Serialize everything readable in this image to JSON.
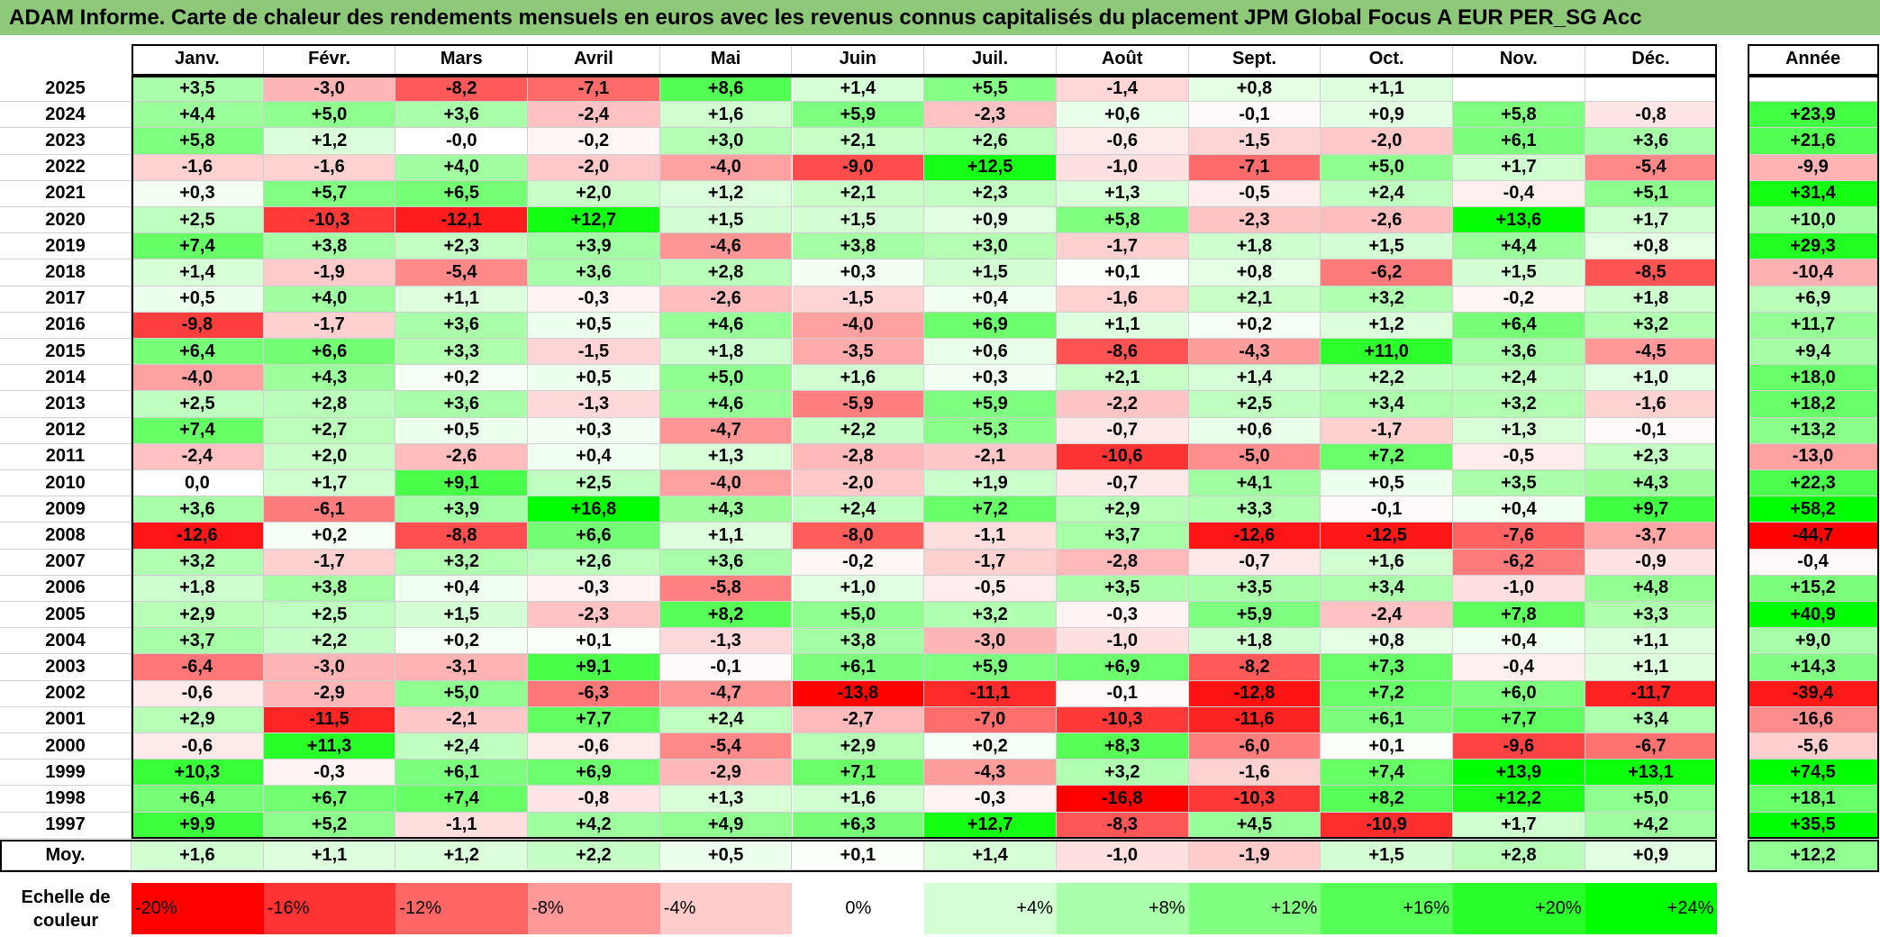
{
  "title": "ADAM Informe. Carte de chaleur des rendements mensuels en euros avec les revenus connus capitalisés du placement JPM Global Focus A EUR PER_SG Acc",
  "chart_data": {
    "type": "heatmap",
    "title": "ADAM Informe. Carte de chaleur des rendements mensuels en euros avec les revenus connus capitalisés du placement JPM Global Focus A EUR PER_SG Acc",
    "columns": [
      "Janv.",
      "Févr.",
      "Mars",
      "Avril",
      "Mai",
      "Juin",
      "Juil.",
      "Août",
      "Sept.",
      "Oct.",
      "Nov.",
      "Déc."
    ],
    "year_column": "Année",
    "rows": [
      {
        "year": "2025",
        "values": [
          "+3,5",
          "-3,0",
          "-8,2",
          "-7,1",
          "+8,6",
          "+1,4",
          "+5,5",
          "-1,4",
          "+0,8",
          "+1,1",
          "",
          ""
        ],
        "annual": ""
      },
      {
        "year": "2024",
        "values": [
          "+4,4",
          "+5,0",
          "+3,6",
          "-2,4",
          "+1,6",
          "+5,9",
          "-2,3",
          "+0,6",
          "-0,1",
          "+0,9",
          "+5,8",
          "-0,8"
        ],
        "annual": "+23,9"
      },
      {
        "year": "2023",
        "values": [
          "+5,8",
          "+1,2",
          "-0,0",
          "-0,2",
          "+3,0",
          "+2,1",
          "+2,6",
          "-0,6",
          "-1,5",
          "-2,0",
          "+6,1",
          "+3,6"
        ],
        "annual": "+21,6"
      },
      {
        "year": "2022",
        "values": [
          "-1,6",
          "-1,6",
          "+4,0",
          "-2,0",
          "-4,0",
          "-9,0",
          "+12,5",
          "-1,0",
          "-7,1",
          "+5,0",
          "+1,7",
          "-5,4"
        ],
        "annual": "-9,9"
      },
      {
        "year": "2021",
        "values": [
          "+0,3",
          "+5,7",
          "+6,5",
          "+2,0",
          "+1,2",
          "+2,1",
          "+2,3",
          "+1,3",
          "-0,5",
          "+2,4",
          "-0,4",
          "+5,1"
        ],
        "annual": "+31,4"
      },
      {
        "year": "2020",
        "values": [
          "+2,5",
          "-10,3",
          "-12,1",
          "+12,7",
          "+1,5",
          "+1,5",
          "+0,9",
          "+5,8",
          "-2,3",
          "-2,6",
          "+13,6",
          "+1,7"
        ],
        "annual": "+10,0"
      },
      {
        "year": "2019",
        "values": [
          "+7,4",
          "+3,8",
          "+2,3",
          "+3,9",
          "-4,6",
          "+3,8",
          "+3,0",
          "-1,7",
          "+1,8",
          "+1,5",
          "+4,4",
          "+0,8"
        ],
        "annual": "+29,3"
      },
      {
        "year": "2018",
        "values": [
          "+1,4",
          "-1,9",
          "-5,4",
          "+3,6",
          "+2,8",
          "+0,3",
          "+1,5",
          "+0,1",
          "+0,8",
          "-6,2",
          "+1,5",
          "-8,5"
        ],
        "annual": "-10,4"
      },
      {
        "year": "2017",
        "values": [
          "+0,5",
          "+4,0",
          "+1,1",
          "-0,3",
          "-2,6",
          "-1,5",
          "+0,4",
          "-1,6",
          "+2,1",
          "+3,2",
          "-0,2",
          "+1,8"
        ],
        "annual": "+6,9"
      },
      {
        "year": "2016",
        "values": [
          "-9,8",
          "-1,7",
          "+3,6",
          "+0,5",
          "+4,6",
          "-4,0",
          "+6,9",
          "+1,1",
          "+0,2",
          "+1,2",
          "+6,4",
          "+3,2"
        ],
        "annual": "+11,7"
      },
      {
        "year": "2015",
        "values": [
          "+6,4",
          "+6,6",
          "+3,3",
          "-1,5",
          "+1,8",
          "-3,5",
          "+0,6",
          "-8,6",
          "-4,3",
          "+11,0",
          "+3,6",
          "-4,5"
        ],
        "annual": "+9,4"
      },
      {
        "year": "2014",
        "values": [
          "-4,0",
          "+4,3",
          "+0,2",
          "+0,5",
          "+5,0",
          "+1,6",
          "+0,3",
          "+2,1",
          "+1,4",
          "+2,2",
          "+2,4",
          "+1,0"
        ],
        "annual": "+18,0"
      },
      {
        "year": "2013",
        "values": [
          "+2,5",
          "+2,8",
          "+3,6",
          "-1,3",
          "+4,6",
          "-5,9",
          "+5,9",
          "-2,2",
          "+2,5",
          "+3,4",
          "+3,2",
          "-1,6"
        ],
        "annual": "+18,2"
      },
      {
        "year": "2012",
        "values": [
          "+7,4",
          "+2,7",
          "+0,5",
          "+0,3",
          "-4,7",
          "+2,2",
          "+5,3",
          "-0,7",
          "+0,6",
          "-1,7",
          "+1,3",
          "-0,1"
        ],
        "annual": "+13,2"
      },
      {
        "year": "2011",
        "values": [
          "-2,4",
          "+2,0",
          "-2,6",
          "+0,4",
          "+1,3",
          "-2,8",
          "-2,1",
          "-10,6",
          "-5,0",
          "+7,2",
          "-0,5",
          "+2,3"
        ],
        "annual": "-13,0"
      },
      {
        "year": "2010",
        "values": [
          "0,0",
          "+1,7",
          "+9,1",
          "+2,5",
          "-4,0",
          "-2,0",
          "+1,9",
          "-0,7",
          "+4,1",
          "+0,5",
          "+3,5",
          "+4,3"
        ],
        "annual": "+22,3"
      },
      {
        "year": "2009",
        "values": [
          "+3,6",
          "-6,1",
          "+3,9",
          "+16,8",
          "+4,3",
          "+2,4",
          "+7,2",
          "+2,9",
          "+3,3",
          "-0,1",
          "+0,4",
          "+9,7"
        ],
        "annual": "+58,2"
      },
      {
        "year": "2008",
        "values": [
          "-12,6",
          "+0,2",
          "-8,8",
          "+6,6",
          "+1,1",
          "-8,0",
          "-1,1",
          "+3,7",
          "-12,6",
          "-12,5",
          "-7,6",
          "-3,7"
        ],
        "annual": "-44,7"
      },
      {
        "year": "2007",
        "values": [
          "+3,2",
          "-1,7",
          "+3,2",
          "+2,6",
          "+3,6",
          "-0,2",
          "-1,7",
          "-2,8",
          "-0,7",
          "+1,6",
          "-6,2",
          "-0,9"
        ],
        "annual": "-0,4"
      },
      {
        "year": "2006",
        "values": [
          "+1,8",
          "+3,8",
          "+0,4",
          "-0,3",
          "-5,8",
          "+1,0",
          "-0,5",
          "+3,5",
          "+3,5",
          "+3,4",
          "-1,0",
          "+4,8"
        ],
        "annual": "+15,2"
      },
      {
        "year": "2005",
        "values": [
          "+2,9",
          "+2,5",
          "+1,5",
          "-2,3",
          "+8,2",
          "+5,0",
          "+3,2",
          "-0,3",
          "+5,9",
          "-2,4",
          "+7,8",
          "+3,3"
        ],
        "annual": "+40,9"
      },
      {
        "year": "2004",
        "values": [
          "+3,7",
          "+2,2",
          "+0,2",
          "+0,1",
          "-1,3",
          "+3,8",
          "-3,0",
          "-1,0",
          "+1,8",
          "+0,8",
          "+0,4",
          "+1,1"
        ],
        "annual": "+9,0"
      },
      {
        "year": "2003",
        "values": [
          "-6,4",
          "-3,0",
          "-3,1",
          "+9,1",
          "-0,1",
          "+6,1",
          "+5,9",
          "+6,9",
          "-8,2",
          "+7,3",
          "-0,4",
          "+1,1"
        ],
        "annual": "+14,3"
      },
      {
        "year": "2002",
        "values": [
          "-0,6",
          "-2,9",
          "+5,0",
          "-6,3",
          "-4,7",
          "-13,8",
          "-11,1",
          "-0,1",
          "-12,8",
          "+7,2",
          "+6,0",
          "-11,7"
        ],
        "annual": "-39,4"
      },
      {
        "year": "2001",
        "values": [
          "+2,9",
          "-11,5",
          "-2,1",
          "+7,7",
          "+2,4",
          "-2,7",
          "-7,0",
          "-10,3",
          "-11,6",
          "+6,1",
          "+7,7",
          "+3,4"
        ],
        "annual": "-16,6"
      },
      {
        "year": "2000",
        "values": [
          "-0,6",
          "+11,3",
          "+2,4",
          "-0,6",
          "-5,4",
          "+2,9",
          "+0,2",
          "+8,3",
          "-6,0",
          "+0,1",
          "-9,6",
          "-6,7"
        ],
        "annual": "-5,6"
      },
      {
        "year": "1999",
        "values": [
          "+10,3",
          "-0,3",
          "+6,1",
          "+6,9",
          "-2,9",
          "+7,1",
          "-4,3",
          "+3,2",
          "-1,6",
          "+7,4",
          "+13,9",
          "+13,1"
        ],
        "annual": "+74,5"
      },
      {
        "year": "1998",
        "values": [
          "+6,4",
          "+6,7",
          "+7,4",
          "-0,8",
          "+1,3",
          "+1,6",
          "-0,3",
          "-16,8",
          "-10,3",
          "+8,2",
          "+12,2",
          "+5,0"
        ],
        "annual": "+18,1"
      },
      {
        "year": "1997",
        "values": [
          "+9,9",
          "+5,2",
          "-1,1",
          "+4,2",
          "+4,9",
          "+6,3",
          "+12,7",
          "-8,3",
          "+4,5",
          "-10,9",
          "+1,7",
          "+4,2"
        ],
        "annual": "+35,5"
      }
    ],
    "average": {
      "label": "Moy.",
      "values": [
        "+1,6",
        "+1,1",
        "+1,2",
        "+2,2",
        "+0,5",
        "+0,1",
        "+1,4",
        "-1,0",
        "-1,9",
        "+1,5",
        "+2,8",
        "+0,9"
      ],
      "annual": "+12,2"
    },
    "scale": {
      "label": "Echelle de couleur",
      "stops": [
        "-20%",
        "-16%",
        "-12%",
        "-8%",
        "-4%",
        "0%",
        "+4%",
        "+8%",
        "+12%",
        "+16%",
        "+20%",
        "+24%"
      ]
    }
  }
}
